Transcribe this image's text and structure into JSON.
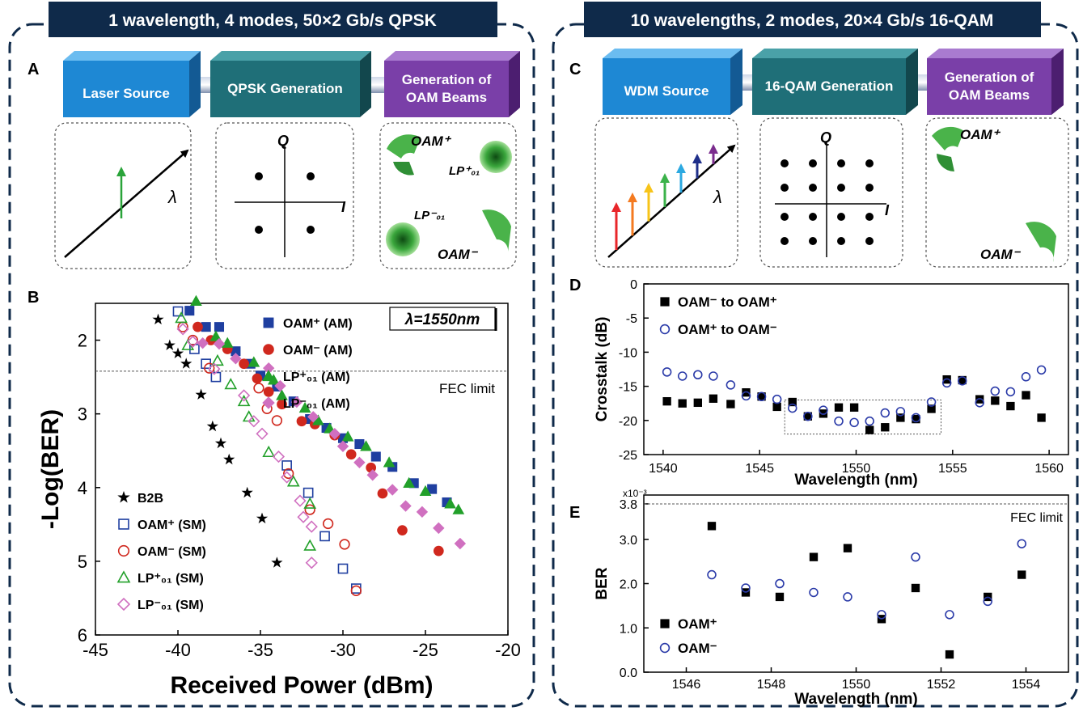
{
  "left": {
    "title": "1 wavelength, 4 modes, 50×2 Gb/s QPSK",
    "blocks": [
      "Laser Source",
      "QPSK Generation",
      "Generation of OAM Beams"
    ],
    "panel_letters": [
      "A",
      "B"
    ],
    "constellation_axes": [
      "Q",
      "I"
    ],
    "lambda_symbol": "λ",
    "beam_labels": {
      "oam_plus": "OAM⁺",
      "oam_minus": "OAM⁻",
      "lp_plus": "LP⁺₀₁",
      "lp_minus": "LP⁻₀₁"
    }
  },
  "right": {
    "title": "10 wavelengths, 2 modes, 20×4 Gb/s 16-QAM",
    "blocks": [
      "WDM Source",
      "16-QAM Generation",
      "Generation of OAM Beams"
    ],
    "panel_letters": [
      "C",
      "D",
      "E"
    ],
    "constellation_axes": [
      "Q",
      "I"
    ],
    "lambda_symbol": "λ",
    "beam_labels": {
      "oam_plus": "OAM⁺",
      "oam_minus": "OAM⁻"
    },
    "wdm_arrow_colors": [
      "#e8262a",
      "#f47a20",
      "#f7c41a",
      "#3bb24a",
      "#2ca9e1",
      "#1f2f8a",
      "#7b2d8e"
    ]
  },
  "colors": {
    "navy": "#0f2a4a",
    "blue_block": "#1e88d4",
    "teal_block": "#1f6f78",
    "purple_block": "#7a3fa8",
    "oam_plus": "#1f3fa0",
    "oam_minus": "#d0281e",
    "lp_plus": "#22a02a",
    "lp_minus": "#d070c0",
    "open_circle": "#2a3aa8"
  },
  "chart_data": [
    {
      "panel": "B",
      "type": "scatter",
      "xlabel": "Received Power (dBm)",
      "ylabel": "-Log(BER)",
      "xlim": [
        -45,
        -20
      ],
      "ylim": [
        1.5,
        6
      ],
      "y_inverted": true,
      "xticks": [
        -45,
        -40,
        -35,
        -30,
        -25,
        -20
      ],
      "yticks": [
        2,
        3,
        4,
        5,
        6
      ],
      "annotation": "λ=1550nm",
      "reference_line": {
        "y": 2.42,
        "label": "FEC limit"
      },
      "series": [
        {
          "name": "B2B",
          "marker": "star",
          "points": [
            [
              -41.2,
              1.72
            ],
            [
              -40.5,
              2.07
            ],
            [
              -40.0,
              2.18
            ],
            [
              -39.5,
              2.32
            ],
            [
              -38.6,
              2.74
            ],
            [
              -37.9,
              3.17
            ],
            [
              -37.4,
              3.4
            ],
            [
              -36.9,
              3.62
            ],
            [
              -35.8,
              4.07
            ],
            [
              -34.9,
              4.42
            ],
            [
              -34.0,
              5.02
            ]
          ]
        },
        {
          "name": "OAM⁺ (SM)",
          "marker": "open-square",
          "points": [
            [
              -40.0,
              1.61
            ],
            [
              -39.0,
              2.12
            ],
            [
              -38.3,
              2.32
            ],
            [
              -37.7,
              2.5
            ],
            [
              -33.4,
              3.7
            ],
            [
              -32.1,
              4.07
            ],
            [
              -31.1,
              4.66
            ],
            [
              -30.0,
              5.1
            ],
            [
              -29.2,
              5.37
            ]
          ]
        },
        {
          "name": "OAM⁻ (SM)",
          "marker": "open-circle",
          "points": [
            [
              -39.7,
              1.82
            ],
            [
              -39.1,
              2.0
            ],
            [
              -38.1,
              2.38
            ],
            [
              -35.1,
              2.65
            ],
            [
              -34.6,
              2.93
            ],
            [
              -34.0,
              3.09
            ],
            [
              -33.3,
              3.81
            ],
            [
              -32.0,
              4.3
            ],
            [
              -30.9,
              4.49
            ],
            [
              -29.9,
              4.77
            ],
            [
              -29.2,
              5.4
            ]
          ]
        },
        {
          "name": "LP⁺₀₁ (SM)",
          "marker": "open-triangle",
          "points": [
            [
              -39.8,
              1.7
            ],
            [
              -39.4,
              2.07
            ],
            [
              -37.6,
              2.28
            ],
            [
              -36.8,
              2.6
            ],
            [
              -36.0,
              2.83
            ],
            [
              -35.7,
              3.04
            ],
            [
              -34.5,
              3.52
            ],
            [
              -33.0,
              3.92
            ],
            [
              -32.0,
              4.22
            ],
            [
              -32.0,
              4.79
            ]
          ]
        },
        {
          "name": "LP⁻₀₁ (SM)",
          "marker": "open-diamond",
          "points": [
            [
              -39.7,
              1.85
            ],
            [
              -39.1,
              2.02
            ],
            [
              -37.8,
              2.39
            ],
            [
              -36.0,
              2.75
            ],
            [
              -35.4,
              3.1
            ],
            [
              -34.9,
              3.27
            ],
            [
              -33.9,
              3.58
            ],
            [
              -33.4,
              3.86
            ],
            [
              -32.6,
              4.18
            ],
            [
              -32.4,
              4.4
            ],
            [
              -31.9,
              4.53
            ],
            [
              -31.9,
              5.02
            ]
          ]
        }
      ]
    },
    {
      "panel": "B",
      "type": "scatter",
      "series": [
        {
          "name": "OAM⁺ (AM)",
          "marker": "filled-square",
          "points": [
            [
              -39.3,
              1.6
            ],
            [
              -38.3,
              1.82
            ],
            [
              -37.5,
              1.82
            ],
            [
              -36.5,
              2.15
            ],
            [
              -35.6,
              2.32
            ],
            [
              -35.0,
              2.48
            ],
            [
              -34.0,
              2.63
            ],
            [
              -33.0,
              2.83
            ],
            [
              -32.0,
              3.07
            ],
            [
              -31.0,
              3.19
            ],
            [
              -30.0,
              3.33
            ],
            [
              -29.0,
              3.41
            ],
            [
              -28.0,
              3.58
            ],
            [
              -27.0,
              3.72
            ],
            [
              -25.7,
              3.94
            ],
            [
              -24.6,
              4.02
            ],
            [
              -23.7,
              4.2
            ]
          ]
        },
        {
          "name": "OAM⁻ (AM)",
          "marker": "filled-circle",
          "points": [
            [
              -38.8,
              1.82
            ],
            [
              -38.0,
              2.0
            ],
            [
              -37.0,
              2.12
            ],
            [
              -36.0,
              2.32
            ],
            [
              -35.2,
              2.52
            ],
            [
              -34.5,
              2.7
            ],
            [
              -33.7,
              2.87
            ],
            [
              -32.5,
              3.1
            ],
            [
              -31.7,
              3.14
            ],
            [
              -30.5,
              3.29
            ],
            [
              -29.5,
              3.55
            ],
            [
              -28.3,
              3.73
            ],
            [
              -27.6,
              4.08
            ],
            [
              -26.4,
              4.58
            ],
            [
              -24.2,
              4.86
            ]
          ]
        },
        {
          "name": "LP⁺₀₁ (AM)",
          "marker": "filled-triangle",
          "points": [
            [
              -38.9,
              1.47
            ],
            [
              -37.7,
              1.95
            ],
            [
              -37.0,
              2.04
            ],
            [
              -35.4,
              2.3
            ],
            [
              -34.2,
              2.54
            ],
            [
              -33.7,
              2.75
            ],
            [
              -32.3,
              2.92
            ],
            [
              -31.5,
              3.09
            ],
            [
              -30.8,
              3.2
            ],
            [
              -29.7,
              3.31
            ],
            [
              -28.6,
              3.44
            ],
            [
              -27.2,
              3.66
            ],
            [
              -26.0,
              3.94
            ],
            [
              -25.0,
              4.05
            ],
            [
              -23.5,
              4.22
            ],
            [
              -23.0,
              4.3
            ]
          ]
        },
        {
          "name": "LP⁻₀₁ (AM)",
          "marker": "filled-diamond",
          "points": [
            [
              -38.5,
              2.04
            ],
            [
              -37.5,
              2.05
            ],
            [
              -36.5,
              2.25
            ],
            [
              -34.5,
              2.38
            ],
            [
              -33.8,
              2.62
            ],
            [
              -32.8,
              2.84
            ],
            [
              -31.8,
              3.04
            ],
            [
              -30.5,
              3.27
            ],
            [
              -30.0,
              3.44
            ],
            [
              -29.0,
              3.66
            ],
            [
              -28.2,
              3.83
            ],
            [
              -27.0,
              4.03
            ],
            [
              -26.2,
              4.25
            ],
            [
              -25.2,
              4.33
            ],
            [
              -24.2,
              4.55
            ],
            [
              -22.9,
              4.76
            ]
          ]
        }
      ]
    },
    {
      "panel": "D",
      "type": "scatter",
      "xlabel": "Wavelength (nm)",
      "ylabel": "Crosstalk (dB)",
      "xlim": [
        1539,
        1561
      ],
      "ylim": [
        -25,
        0
      ],
      "xticks": [
        1540,
        1545,
        1550,
        1555,
        1560
      ],
      "yticks": [
        -25,
        -20,
        -15,
        -10,
        -5,
        0
      ],
      "highlight_box": {
        "x": [
          1546.3,
          1554.4
        ],
        "y": [
          -22,
          -17
        ]
      },
      "series": [
        {
          "name": "OAM⁻ to OAM⁺",
          "marker": "filled-square",
          "x": [
            1540.2,
            1541.0,
            1541.8,
            1542.6,
            1543.5,
            1544.3,
            1545.1,
            1545.9,
            1546.7,
            1547.5,
            1548.3,
            1549.1,
            1549.9,
            1550.7,
            1551.5,
            1552.3,
            1553.1,
            1553.9,
            1554.7,
            1555.5,
            1556.4,
            1557.2,
            1558.0,
            1558.8,
            1559.6
          ],
          "y": [
            -17.2,
            -17.5,
            -17.4,
            -16.8,
            -17.6,
            -15.9,
            -16.5,
            -18.0,
            -17.3,
            -19.4,
            -19.0,
            -18.1,
            -18.1,
            -21.4,
            -21.0,
            -19.6,
            -19.8,
            -18.3,
            -14.0,
            -14.1,
            -16.9,
            -17.1,
            -17.9,
            -16.3,
            -19.6
          ]
        },
        {
          "name": "OAM⁺ to OAM⁻",
          "marker": "open-circle",
          "x": [
            1540.2,
            1541.0,
            1541.8,
            1542.6,
            1543.5,
            1544.3,
            1545.1,
            1545.9,
            1546.7,
            1547.5,
            1548.3,
            1549.1,
            1549.9,
            1550.7,
            1551.5,
            1552.3,
            1553.1,
            1553.9,
            1554.7,
            1555.5,
            1556.4,
            1557.2,
            1558.0,
            1558.8,
            1559.6
          ],
          "y": [
            -12.9,
            -13.5,
            -13.3,
            -13.5,
            -14.8,
            -16.4,
            -16.5,
            -16.9,
            -18.2,
            -19.4,
            -18.5,
            -20.1,
            -20.3,
            -20.1,
            -18.9,
            -18.7,
            -19.6,
            -17.3,
            -14.5,
            -14.2,
            -17.4,
            -15.7,
            -15.8,
            -13.6,
            -12.6
          ]
        }
      ]
    },
    {
      "panel": "E",
      "type": "scatter",
      "xlabel": "Wavelength (nm)",
      "ylabel": "BER",
      "axis_multiplier": "x10⁻³",
      "xlim": [
        1545,
        1555
      ],
      "ylim": [
        0,
        4.0
      ],
      "xticks": [
        1546,
        1548,
        1550,
        1552,
        1554
      ],
      "yticks": [
        0.0,
        1.0,
        2.0,
        3.0,
        3.8
      ],
      "reference_line": {
        "y": 3.8,
        "label": "FEC limit"
      },
      "series": [
        {
          "name": "OAM⁺",
          "marker": "filled-square",
          "x": [
            1546.6,
            1547.4,
            1548.2,
            1549.0,
            1549.8,
            1550.6,
            1551.4,
            1552.2,
            1553.1,
            1553.9
          ],
          "y": [
            3.3,
            1.8,
            1.7,
            2.6,
            2.8,
            1.2,
            1.9,
            0.4,
            1.7,
            2.2
          ]
        },
        {
          "name": "OAM⁻",
          "marker": "open-circle",
          "x": [
            1546.6,
            1547.4,
            1548.2,
            1549.0,
            1549.8,
            1550.6,
            1551.4,
            1552.2,
            1553.1,
            1553.9
          ],
          "y": [
            2.2,
            1.9,
            2.0,
            1.8,
            1.7,
            1.3,
            2.6,
            1.3,
            1.6,
            2.9
          ]
        }
      ]
    }
  ]
}
